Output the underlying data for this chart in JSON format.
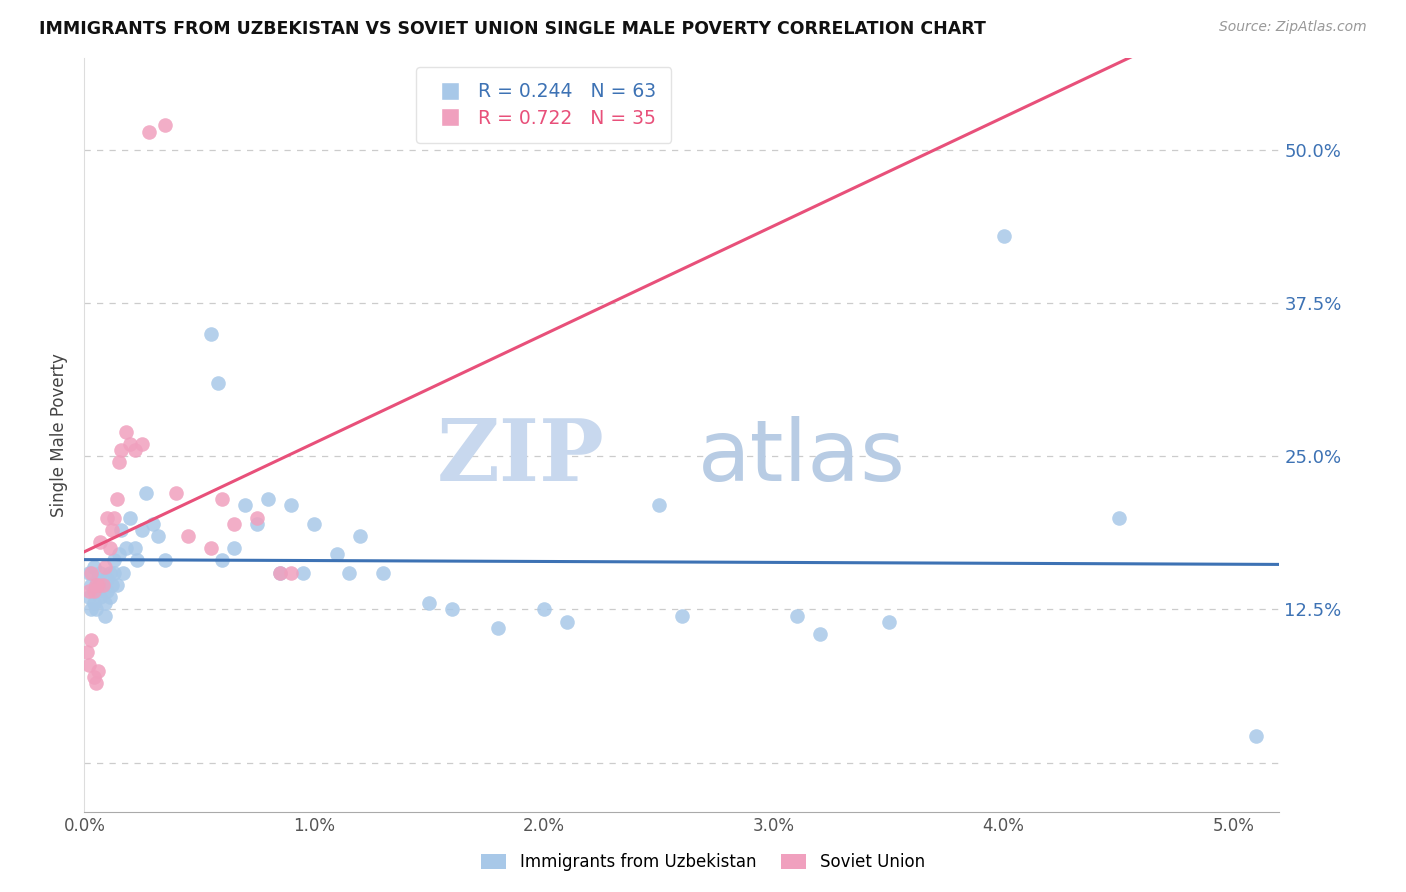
{
  "title": "IMMIGRANTS FROM UZBEKISTAN VS SOVIET UNION SINGLE MALE POVERTY CORRELATION CHART",
  "source_text": "Source: ZipAtlas.com",
  "ylabel": "Single Male Poverty",
  "R_uzbekistan": 0.244,
  "N_uzbekistan": 63,
  "R_soviet": 0.722,
  "N_soviet": 35,
  "color_uzbekistan": "#A8C8E8",
  "color_soviet": "#F0A0BE",
  "line_color_uzbekistan": "#3D72B4",
  "line_color_soviet": "#E8507A",
  "background_color": "#FFFFFF",
  "watermark_zip": "ZIP",
  "watermark_atlas": "atlas",
  "watermark_color_zip": "#C8D8EE",
  "watermark_color_atlas": "#B8CCE4",
  "xlim": [
    0.0,
    0.052
  ],
  "ylim": [
    -0.04,
    0.575
  ],
  "yticks": [
    0.0,
    0.125,
    0.25,
    0.375,
    0.5
  ],
  "ytick_labels": [
    "",
    "12.5%",
    "25.0%",
    "37.5%",
    "50.0%"
  ],
  "xticks": [
    0.0,
    0.01,
    0.02,
    0.03,
    0.04,
    0.05
  ],
  "xtick_labels": [
    "0.0%",
    "1.0%",
    "2.0%",
    "3.0%",
    "4.0%",
    "5.0%"
  ],
  "uzbekistan_x": [
    0.0002,
    0.0002,
    0.0003,
    0.0003,
    0.0004,
    0.0004,
    0.0005,
    0.0005,
    0.0006,
    0.0006,
    0.0007,
    0.0007,
    0.0008,
    0.0009,
    0.0009,
    0.001,
    0.001,
    0.0011,
    0.0011,
    0.0012,
    0.0013,
    0.0013,
    0.0014,
    0.0015,
    0.0016,
    0.0017,
    0.0018,
    0.002,
    0.0022,
    0.0023,
    0.0025,
    0.0027,
    0.003,
    0.0032,
    0.0035,
    0.0055,
    0.0058,
    0.006,
    0.0065,
    0.007,
    0.0075,
    0.008,
    0.0085,
    0.009,
    0.0095,
    0.01,
    0.011,
    0.0115,
    0.012,
    0.013,
    0.015,
    0.016,
    0.018,
    0.02,
    0.021,
    0.025,
    0.026,
    0.031,
    0.032,
    0.035,
    0.04,
    0.045,
    0.051
  ],
  "uzbekistan_y": [
    0.155,
    0.135,
    0.145,
    0.125,
    0.16,
    0.13,
    0.145,
    0.125,
    0.15,
    0.14,
    0.155,
    0.135,
    0.145,
    0.13,
    0.12,
    0.15,
    0.14,
    0.155,
    0.135,
    0.145,
    0.165,
    0.155,
    0.145,
    0.17,
    0.19,
    0.155,
    0.175,
    0.2,
    0.175,
    0.165,
    0.19,
    0.22,
    0.195,
    0.185,
    0.165,
    0.35,
    0.31,
    0.165,
    0.175,
    0.21,
    0.195,
    0.215,
    0.155,
    0.21,
    0.155,
    0.195,
    0.17,
    0.155,
    0.185,
    0.155,
    0.13,
    0.125,
    0.11,
    0.125,
    0.115,
    0.21,
    0.12,
    0.12,
    0.105,
    0.115,
    0.43,
    0.2,
    0.022
  ],
  "soviet_x": [
    0.0001,
    0.0002,
    0.0002,
    0.0003,
    0.0003,
    0.0004,
    0.0004,
    0.0005,
    0.0005,
    0.0006,
    0.0006,
    0.0007,
    0.0008,
    0.0009,
    0.001,
    0.0011,
    0.0012,
    0.0013,
    0.0014,
    0.0015,
    0.0016,
    0.0018,
    0.002,
    0.0022,
    0.0025,
    0.0028,
    0.0035,
    0.004,
    0.0045,
    0.0055,
    0.006,
    0.0065,
    0.0075,
    0.0085,
    0.009
  ],
  "soviet_y": [
    0.09,
    0.14,
    0.08,
    0.155,
    0.1,
    0.14,
    0.07,
    0.145,
    0.065,
    0.145,
    0.075,
    0.18,
    0.145,
    0.16,
    0.2,
    0.175,
    0.19,
    0.2,
    0.215,
    0.245,
    0.255,
    0.27,
    0.26,
    0.255,
    0.26,
    0.515,
    0.52,
    0.22,
    0.185,
    0.175,
    0.215,
    0.195,
    0.2,
    0.155,
    0.155
  ]
}
